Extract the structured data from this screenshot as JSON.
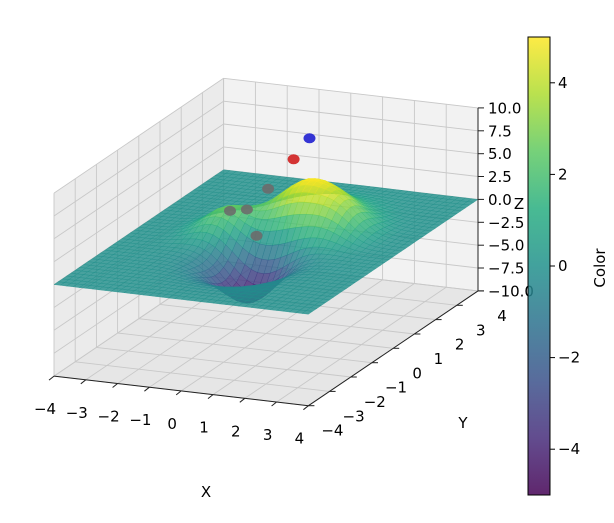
{
  "chart_data": {
    "type": "surface3d",
    "xlabel": "X",
    "ylabel": "Y",
    "zlabel": "Z",
    "xlim": [
      -4,
      4
    ],
    "ylim": [
      -4,
      4
    ],
    "zlim": [
      -10,
      10
    ],
    "x_ticks": [
      "−4",
      "−3",
      "−2",
      "−1",
      "0",
      "1",
      "2",
      "3",
      "4"
    ],
    "y_ticks": [
      "−4",
      "−3",
      "−2",
      "−1",
      "0",
      "1",
      "2",
      "3",
      "4"
    ],
    "z_ticks": [
      "−10.0",
      "−7.5",
      "−5.0",
      "−2.5",
      "0.0",
      "2.5",
      "5.0",
      "7.5",
      "10.0"
    ],
    "colormap": "viridis",
    "grid": true,
    "surface": {
      "description_function": "bumps",
      "bumps": [
        {
          "x": 0.5,
          "y": 1.2,
          "amplitude": 5.0,
          "sigma": 0.9
        },
        {
          "x": 0.2,
          "y": -1.0,
          "amplitude": -5.0,
          "sigma": 0.8
        },
        {
          "x": -1.5,
          "y": 0.3,
          "amplitude": 2.5,
          "sigma": 0.6
        },
        {
          "x": 1.8,
          "y": 0.9,
          "amplitude": 2.0,
          "sigma": 0.6
        }
      ]
    },
    "markers": [
      {
        "x": 0.5,
        "y": 1.3,
        "z": 9.5,
        "color": "#1f1fd0"
      },
      {
        "x": 0.0,
        "y": 1.3,
        "z": 7.0,
        "color": "#d01f1f"
      },
      {
        "x": -0.6,
        "y": 1.0,
        "z": 4.0,
        "color": "#6b6b6b"
      },
      {
        "x": -2.2,
        "y": 1.6,
        "z": 0.0,
        "color": "#6b6b6b"
      },
      {
        "x": -1.8,
        "y": 1.8,
        "z": 0.0,
        "color": "#6b6b6b"
      },
      {
        "x": -0.5,
        "y": 0.3,
        "z": 0.0,
        "color": "#6b6b6b"
      }
    ],
    "colorbar": {
      "label": "Color",
      "min": -5,
      "max": 5,
      "ticks": [
        "−4",
        "−2",
        "0",
        "2",
        "4"
      ],
      "tick_values": [
        -4,
        -2,
        0,
        2,
        4
      ]
    }
  }
}
